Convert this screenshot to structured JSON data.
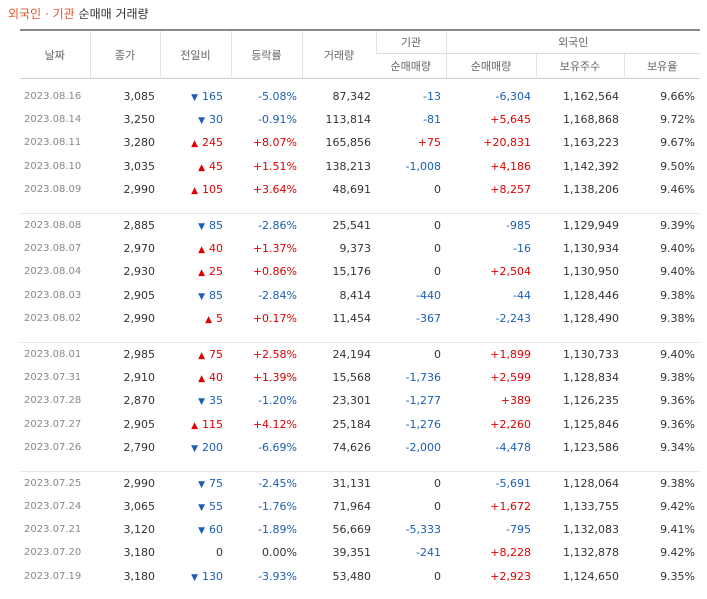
{
  "title": {
    "foreign": "외국인",
    "sep": "·",
    "inst": "기관",
    "rest": "순매매 거래량"
  },
  "headers": {
    "date": "날짜",
    "close": "종가",
    "change": "전일비",
    "rate": "등락률",
    "volume": "거래량",
    "inst_group": "기관",
    "foreign_group": "외국인",
    "inst_net": "순매매량",
    "foreign_net": "순매매량",
    "foreign_holdings": "보유주수",
    "foreign_ratio": "보유율"
  },
  "colors": {
    "up": "#d00000",
    "down": "#1a5fb4",
    "accent": "#e4572e"
  },
  "groups": [
    [
      {
        "date": "2023.08.16",
        "close": "3,085",
        "dir": "down",
        "change": "165",
        "rate": "-5.08%",
        "volume": "87,342",
        "inst": "-13",
        "foreign": "-6,304",
        "holdings": "1,162,564",
        "ratio": "9.66%"
      },
      {
        "date": "2023.08.14",
        "close": "3,250",
        "dir": "down",
        "change": "30",
        "rate": "-0.91%",
        "volume": "113,814",
        "inst": "-81",
        "foreign": "+5,645",
        "holdings": "1,168,868",
        "ratio": "9.72%"
      },
      {
        "date": "2023.08.11",
        "close": "3,280",
        "dir": "up",
        "change": "245",
        "rate": "+8.07%",
        "volume": "165,856",
        "inst": "+75",
        "foreign": "+20,831",
        "holdings": "1,163,223",
        "ratio": "9.67%"
      },
      {
        "date": "2023.08.10",
        "close": "3,035",
        "dir": "up",
        "change": "45",
        "rate": "+1.51%",
        "volume": "138,213",
        "inst": "-1,008",
        "foreign": "+4,186",
        "holdings": "1,142,392",
        "ratio": "9.50%"
      },
      {
        "date": "2023.08.09",
        "close": "2,990",
        "dir": "up",
        "change": "105",
        "rate": "+3.64%",
        "volume": "48,691",
        "inst": "0",
        "foreign": "+8,257",
        "holdings": "1,138,206",
        "ratio": "9.46%"
      }
    ],
    [
      {
        "date": "2023.08.08",
        "close": "2,885",
        "dir": "down",
        "change": "85",
        "rate": "-2.86%",
        "volume": "25,541",
        "inst": "0",
        "foreign": "-985",
        "holdings": "1,129,949",
        "ratio": "9.39%"
      },
      {
        "date": "2023.08.07",
        "close": "2,970",
        "dir": "up",
        "change": "40",
        "rate": "+1.37%",
        "volume": "9,373",
        "inst": "0",
        "foreign": "-16",
        "holdings": "1,130,934",
        "ratio": "9.40%"
      },
      {
        "date": "2023.08.04",
        "close": "2,930",
        "dir": "up",
        "change": "25",
        "rate": "+0.86%",
        "volume": "15,176",
        "inst": "0",
        "foreign": "+2,504",
        "holdings": "1,130,950",
        "ratio": "9.40%"
      },
      {
        "date": "2023.08.03",
        "close": "2,905",
        "dir": "down",
        "change": "85",
        "rate": "-2.84%",
        "volume": "8,414",
        "inst": "-440",
        "foreign": "-44",
        "holdings": "1,128,446",
        "ratio": "9.38%"
      },
      {
        "date": "2023.08.02",
        "close": "2,990",
        "dir": "up",
        "change": "5",
        "rate": "+0.17%",
        "volume": "11,454",
        "inst": "-367",
        "foreign": "-2,243",
        "holdings": "1,128,490",
        "ratio": "9.38%"
      }
    ],
    [
      {
        "date": "2023.08.01",
        "close": "2,985",
        "dir": "up",
        "change": "75",
        "rate": "+2.58%",
        "volume": "24,194",
        "inst": "0",
        "foreign": "+1,899",
        "holdings": "1,130,733",
        "ratio": "9.40%"
      },
      {
        "date": "2023.07.31",
        "close": "2,910",
        "dir": "up",
        "change": "40",
        "rate": "+1.39%",
        "volume": "15,568",
        "inst": "-1,736",
        "foreign": "+2,599",
        "holdings": "1,128,834",
        "ratio": "9.38%"
      },
      {
        "date": "2023.07.28",
        "close": "2,870",
        "dir": "down",
        "change": "35",
        "rate": "-1.20%",
        "volume": "23,301",
        "inst": "-1,277",
        "foreign": "+389",
        "holdings": "1,126,235",
        "ratio": "9.36%"
      },
      {
        "date": "2023.07.27",
        "close": "2,905",
        "dir": "up",
        "change": "115",
        "rate": "+4.12%",
        "volume": "25,184",
        "inst": "-1,276",
        "foreign": "+2,260",
        "holdings": "1,125,846",
        "ratio": "9.36%"
      },
      {
        "date": "2023.07.26",
        "close": "2,790",
        "dir": "down",
        "change": "200",
        "rate": "-6.69%",
        "volume": "74,626",
        "inst": "-2,000",
        "foreign": "-4,478",
        "holdings": "1,123,586",
        "ratio": "9.34%"
      }
    ],
    [
      {
        "date": "2023.07.25",
        "close": "2,990",
        "dir": "down",
        "change": "75",
        "rate": "-2.45%",
        "volume": "31,131",
        "inst": "0",
        "foreign": "-5,691",
        "holdings": "1,128,064",
        "ratio": "9.38%"
      },
      {
        "date": "2023.07.24",
        "close": "3,065",
        "dir": "down",
        "change": "55",
        "rate": "-1.76%",
        "volume": "71,964",
        "inst": "0",
        "foreign": "+1,672",
        "holdings": "1,133,755",
        "ratio": "9.42%"
      },
      {
        "date": "2023.07.21",
        "close": "3,120",
        "dir": "down",
        "change": "60",
        "rate": "-1.89%",
        "volume": "56,669",
        "inst": "-5,333",
        "foreign": "-795",
        "holdings": "1,132,083",
        "ratio": "9.41%"
      },
      {
        "date": "2023.07.20",
        "close": "3,180",
        "dir": "none",
        "change": "0",
        "rate": "0.00%",
        "volume": "39,351",
        "inst": "-241",
        "foreign": "+8,228",
        "holdings": "1,132,878",
        "ratio": "9.42%"
      },
      {
        "date": "2023.07.19",
        "close": "3,180",
        "dir": "down",
        "change": "130",
        "rate": "-3.93%",
        "volume": "53,480",
        "inst": "0",
        "foreign": "+2,923",
        "holdings": "1,124,650",
        "ratio": "9.35%"
      }
    ]
  ]
}
